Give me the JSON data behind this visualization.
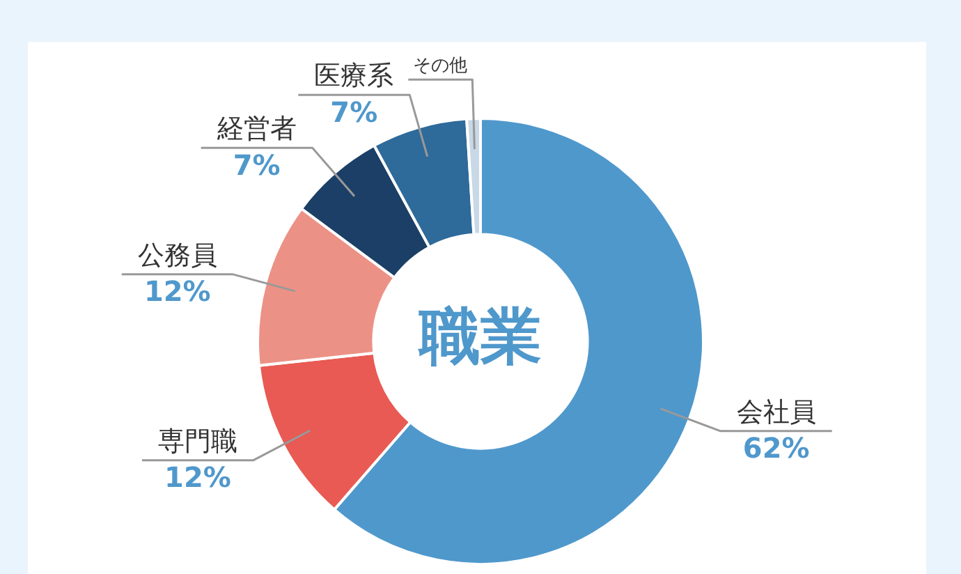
{
  "chart_data": {
    "type": "donut",
    "title": "職業",
    "categories": [
      "会社員",
      "専門職",
      "公務員",
      "経営者",
      "医療系",
      "その他"
    ],
    "values": [
      62,
      12,
      12,
      7,
      7,
      1
    ],
    "value_labels": [
      "62%",
      "12%",
      "12%",
      "7%",
      "7%",
      null
    ],
    "colors": [
      "#4f98cc",
      "#e85a53",
      "#ec9186",
      "#1b3f66",
      "#2e6a9a",
      "#c8d8e6"
    ]
  }
}
